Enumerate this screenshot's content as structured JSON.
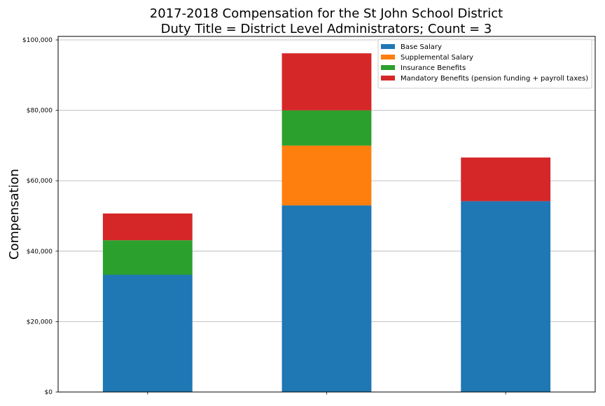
{
  "chart_data": {
    "type": "bar",
    "stacked": true,
    "title_lines": [
      "2017-2018 Compensation for the St John School District",
      "Duty Title = District Level Administrators; Count = 3"
    ],
    "xlabel": "",
    "ylabel": "Compensation",
    "categories": [
      "",
      "",
      ""
    ],
    "ylim": [
      0,
      101000
    ],
    "yticks": [
      0,
      20000,
      40000,
      60000,
      80000,
      100000
    ],
    "ytick_labels": [
      "$0",
      "$20,000",
      "$40,000",
      "$60,000",
      "$80,000",
      "$100,000"
    ],
    "grid": "horizontal",
    "legend_position": "top-right",
    "series": [
      {
        "name": "Base Salary",
        "color": "#1f77b4",
        "values": [
          33300,
          53000,
          54200
        ]
      },
      {
        "name": "Supplemental Salary",
        "color": "#ff7f0e",
        "values": [
          0,
          17000,
          0
        ]
      },
      {
        "name": "Insurance Benefits",
        "color": "#2ca02c",
        "values": [
          9800,
          10000,
          0
        ]
      },
      {
        "name": "Mandatory Benefits (pension funding + payroll taxes)",
        "color": "#d62728",
        "values": [
          7600,
          16200,
          12400
        ]
      }
    ]
  }
}
